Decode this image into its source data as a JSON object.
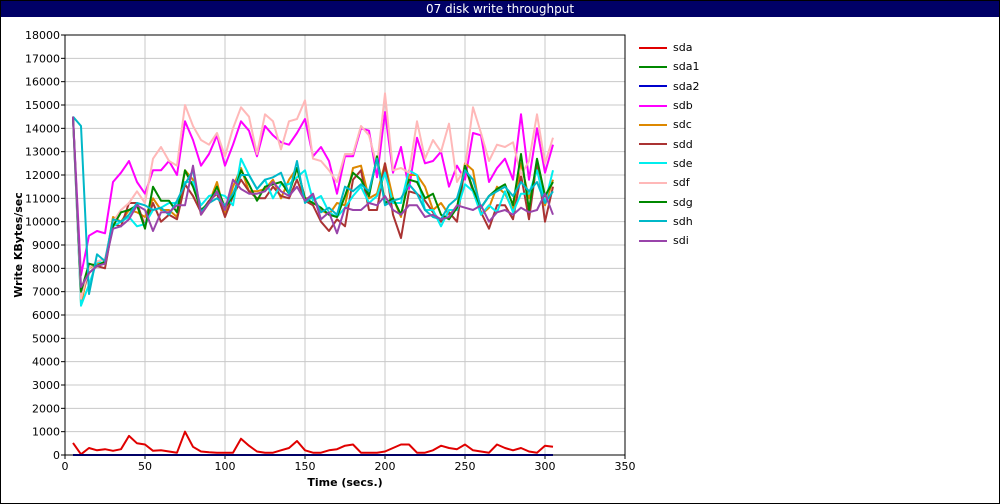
{
  "window": {
    "title": "07 disk write throughput"
  },
  "colors": {
    "title_bg": "#000066",
    "grid": "#c8c8c8",
    "axis": "#000000"
  },
  "chart_data": {
    "type": "line",
    "title": "07 disk write throughput",
    "xlabel": "Time (secs.)",
    "ylabel": "Write KBytes/sec",
    "xlim": [
      0,
      350
    ],
    "ylim": [
      0,
      18000
    ],
    "xticks": [
      0,
      50,
      100,
      150,
      200,
      250,
      300,
      350
    ],
    "yticks": [
      0,
      1000,
      2000,
      3000,
      4000,
      5000,
      6000,
      7000,
      8000,
      9000,
      10000,
      11000,
      12000,
      13000,
      14000,
      15000,
      16000,
      17000,
      18000
    ],
    "grid": true,
    "legend_position": "right",
    "x": [
      5,
      10,
      15,
      20,
      25,
      30,
      35,
      40,
      45,
      50,
      55,
      60,
      65,
      70,
      75,
      80,
      85,
      90,
      95,
      100,
      105,
      110,
      115,
      120,
      125,
      130,
      135,
      140,
      145,
      150,
      155,
      160,
      165,
      170,
      175,
      180,
      185,
      190,
      195,
      200,
      205,
      210,
      215,
      220,
      225,
      230,
      235,
      240,
      245,
      250,
      255,
      260,
      265,
      270,
      275,
      280,
      285,
      290,
      295,
      300,
      305
    ],
    "series": [
      {
        "name": "sda",
        "color": "#e00000",
        "values": [
          520,
          30,
          300,
          200,
          250,
          180,
          250,
          820,
          500,
          450,
          180,
          200,
          150,
          100,
          1000,
          350,
          150,
          120,
          100,
          100,
          100,
          700,
          400,
          150,
          100,
          100,
          200,
          300,
          600,
          200,
          100,
          100,
          200,
          250,
          400,
          450,
          100,
          100,
          100,
          150,
          300,
          450,
          450,
          100,
          100,
          200,
          400,
          300,
          250,
          450,
          200,
          150,
          100,
          450,
          300,
          200,
          300,
          150,
          100,
          400,
          350
        ]
      },
      {
        "name": "sda1",
        "color": "#008800",
        "values": [
          0,
          0,
          0,
          0,
          0,
          0,
          0,
          0,
          0,
          0,
          0,
          0,
          0,
          0,
          0,
          0,
          0,
          0,
          0,
          0,
          0,
          0,
          0,
          0,
          0,
          0,
          0,
          0,
          0,
          0,
          0,
          0,
          0,
          0,
          0,
          0,
          0,
          0,
          0,
          0,
          0,
          0,
          0,
          0,
          0,
          0,
          0,
          0,
          0,
          0,
          0,
          0,
          0,
          0,
          0,
          0,
          0,
          0,
          0,
          0,
          0
        ]
      },
      {
        "name": "sda2",
        "color": "#0000cc",
        "values": [
          0,
          0,
          0,
          0,
          0,
          0,
          0,
          0,
          0,
          0,
          0,
          0,
          0,
          0,
          0,
          0,
          0,
          0,
          0,
          0,
          0,
          0,
          0,
          0,
          0,
          0,
          0,
          0,
          0,
          0,
          0,
          0,
          0,
          0,
          0,
          0,
          0,
          0,
          0,
          0,
          0,
          0,
          0,
          0,
          0,
          0,
          0,
          0,
          0,
          0,
          0,
          0,
          0,
          0,
          0,
          0,
          0,
          0,
          0,
          0,
          0
        ]
      },
      {
        "name": "sdb",
        "color": "#ff00ff",
        "values": [
          14500,
          7700,
          9400,
          9600,
          9500,
          11700,
          12100,
          12600,
          11700,
          11200,
          12200,
          12200,
          12600,
          12000,
          14300,
          13500,
          12400,
          12900,
          13700,
          12400,
          13300,
          14300,
          13900,
          12800,
          14100,
          13700,
          13400,
          13300,
          13800,
          14400,
          12800,
          13200,
          12600,
          11200,
          12800,
          12800,
          14000,
          13900,
          11900,
          14700,
          12100,
          13200,
          11400,
          13600,
          12500,
          12600,
          13000,
          11500,
          12400,
          11800,
          13800,
          13700,
          11700,
          12300,
          12700,
          11800,
          14600,
          11800,
          14000,
          12100,
          13300
        ]
      },
      {
        "name": "sdc",
        "color": "#dd8800",
        "values": [
          14500,
          6500,
          8000,
          8200,
          8200,
          10200,
          10000,
          10500,
          10400,
          10200,
          11000,
          10500,
          10500,
          10200,
          12200,
          11800,
          10300,
          10800,
          11700,
          10300,
          11500,
          12300,
          11300,
          11300,
          11400,
          11800,
          11000,
          11800,
          12300,
          11000,
          11000,
          10500,
          10300,
          10800,
          10700,
          12300,
          12400,
          11000,
          11200,
          12500,
          11000,
          10200,
          12000,
          12000,
          11500,
          10500,
          10800,
          10300,
          10600,
          12500,
          12200,
          10300,
          10600,
          11500,
          11200,
          10500,
          12500,
          11000,
          12300,
          10700,
          11800
        ]
      },
      {
        "name": "sdd",
        "color": "#aa3333",
        "values": [
          14500,
          6800,
          7800,
          8100,
          8000,
          9900,
          9800,
          10800,
          10800,
          9800,
          10800,
          10000,
          10300,
          10100,
          11600,
          11100,
          10400,
          10900,
          11200,
          10200,
          11100,
          11800,
          11300,
          11000,
          11000,
          11500,
          11100,
          11000,
          11800,
          10900,
          10700,
          10000,
          9600,
          10100,
          9800,
          11800,
          12200,
          10500,
          10500,
          12500,
          10300,
          9300,
          11300,
          11200,
          10900,
          10400,
          10000,
          10400,
          10000,
          12400,
          11300,
          10400,
          9700,
          10700,
          10700,
          10100,
          12000,
          10100,
          12600,
          10000,
          11500
        ]
      },
      {
        "name": "sde",
        "color": "#00eeee",
        "values": [
          14500,
          6400,
          7300,
          8300,
          8200,
          9800,
          10000,
          10200,
          9800,
          9900,
          10500,
          10600,
          10800,
          10800,
          11700,
          11700,
          10700,
          11100,
          11200,
          11100,
          10700,
          12700,
          12000,
          11400,
          11800,
          11000,
          11600,
          11600,
          11900,
          12200,
          10900,
          11100,
          10400,
          10200,
          10600,
          11100,
          11500,
          10800,
          11100,
          12100,
          10800,
          10800,
          12200,
          12000,
          10500,
          10500,
          9800,
          10500,
          10500,
          11600,
          11300,
          10300,
          10700,
          10400,
          11300,
          10400,
          11200,
          11200,
          12200,
          10800,
          12200
        ]
      },
      {
        "name": "sdf",
        "color": "#ffb8b8",
        "values": [
          14500,
          6700,
          8000,
          8300,
          8400,
          10000,
          10500,
          10800,
          11300,
          10800,
          12700,
          13200,
          12600,
          12400,
          15000,
          14100,
          13500,
          13300,
          13800,
          12800,
          14000,
          14900,
          14500,
          12900,
          14600,
          14300,
          13100,
          14300,
          14400,
          15200,
          12700,
          12600,
          12200,
          11700,
          12900,
          12900,
          14100,
          13700,
          12400,
          15500,
          12200,
          12300,
          12100,
          14300,
          12700,
          13500,
          13000,
          14200,
          11700,
          12300,
          14900,
          13800,
          12600,
          13300,
          13200,
          13400,
          12000,
          12600,
          14600,
          12500,
          13600
        ]
      },
      {
        "name": "sdg",
        "color": "#008800",
        "values": [
          14500,
          7000,
          8200,
          8100,
          8300,
          9800,
          10400,
          10500,
          10700,
          9700,
          11500,
          10900,
          10900,
          10400,
          12200,
          11500,
          10500,
          10800,
          11500,
          10600,
          11100,
          12200,
          11600,
          10900,
          11500,
          11600,
          11700,
          11200,
          12300,
          11000,
          10800,
          10600,
          10300,
          10200,
          11100,
          12100,
          11800,
          11100,
          12800,
          10800,
          11000,
          10300,
          11800,
          11700,
          11000,
          11200,
          10300,
          10100,
          10600,
          12400,
          11400,
          10600,
          11100,
          11400,
          11600,
          10700,
          12900,
          10500,
          12700,
          11100,
          11700
        ]
      },
      {
        "name": "sdh",
        "color": "#00b8c8",
        "values": [
          14500,
          14100,
          6900,
          8600,
          8300,
          10100,
          10000,
          10300,
          10800,
          10700,
          10500,
          10600,
          10300,
          10900,
          11600,
          12200,
          10400,
          10800,
          11000,
          10700,
          11200,
          12000,
          12000,
          11400,
          11800,
          11900,
          12100,
          11200,
          12600,
          10800,
          11100,
          10400,
          10600,
          10300,
          11500,
          11300,
          11600,
          11300,
          12700,
          10700,
          10900,
          11000,
          11600,
          11200,
          10500,
          10200,
          10100,
          10700,
          11000,
          12200,
          11800,
          10600,
          11100,
          11300,
          11500,
          11100,
          11700,
          11300,
          11700,
          10800,
          11300
        ]
      },
      {
        "name": "sdi",
        "color": "#9944aa",
        "values": [
          14500,
          7200,
          7800,
          8100,
          8200,
          9700,
          9800,
          10100,
          10700,
          10500,
          9600,
          10400,
          10400,
          10700,
          10700,
          12400,
          10300,
          10800,
          11300,
          10500,
          11800,
          11400,
          11200,
          11200,
          11300,
          11700,
          11300,
          11100,
          11500,
          10900,
          11200,
          10100,
          10400,
          9500,
          10600,
          10500,
          10500,
          10800,
          10700,
          11100,
          10500,
          10300,
          10700,
          10700,
          10200,
          10300,
          10100,
          10200,
          10700,
          10600,
          10500,
          10700,
          10000,
          10400,
          10500,
          10300,
          10600,
          10400,
          10500,
          11200,
          10300
        ]
      }
    ]
  }
}
